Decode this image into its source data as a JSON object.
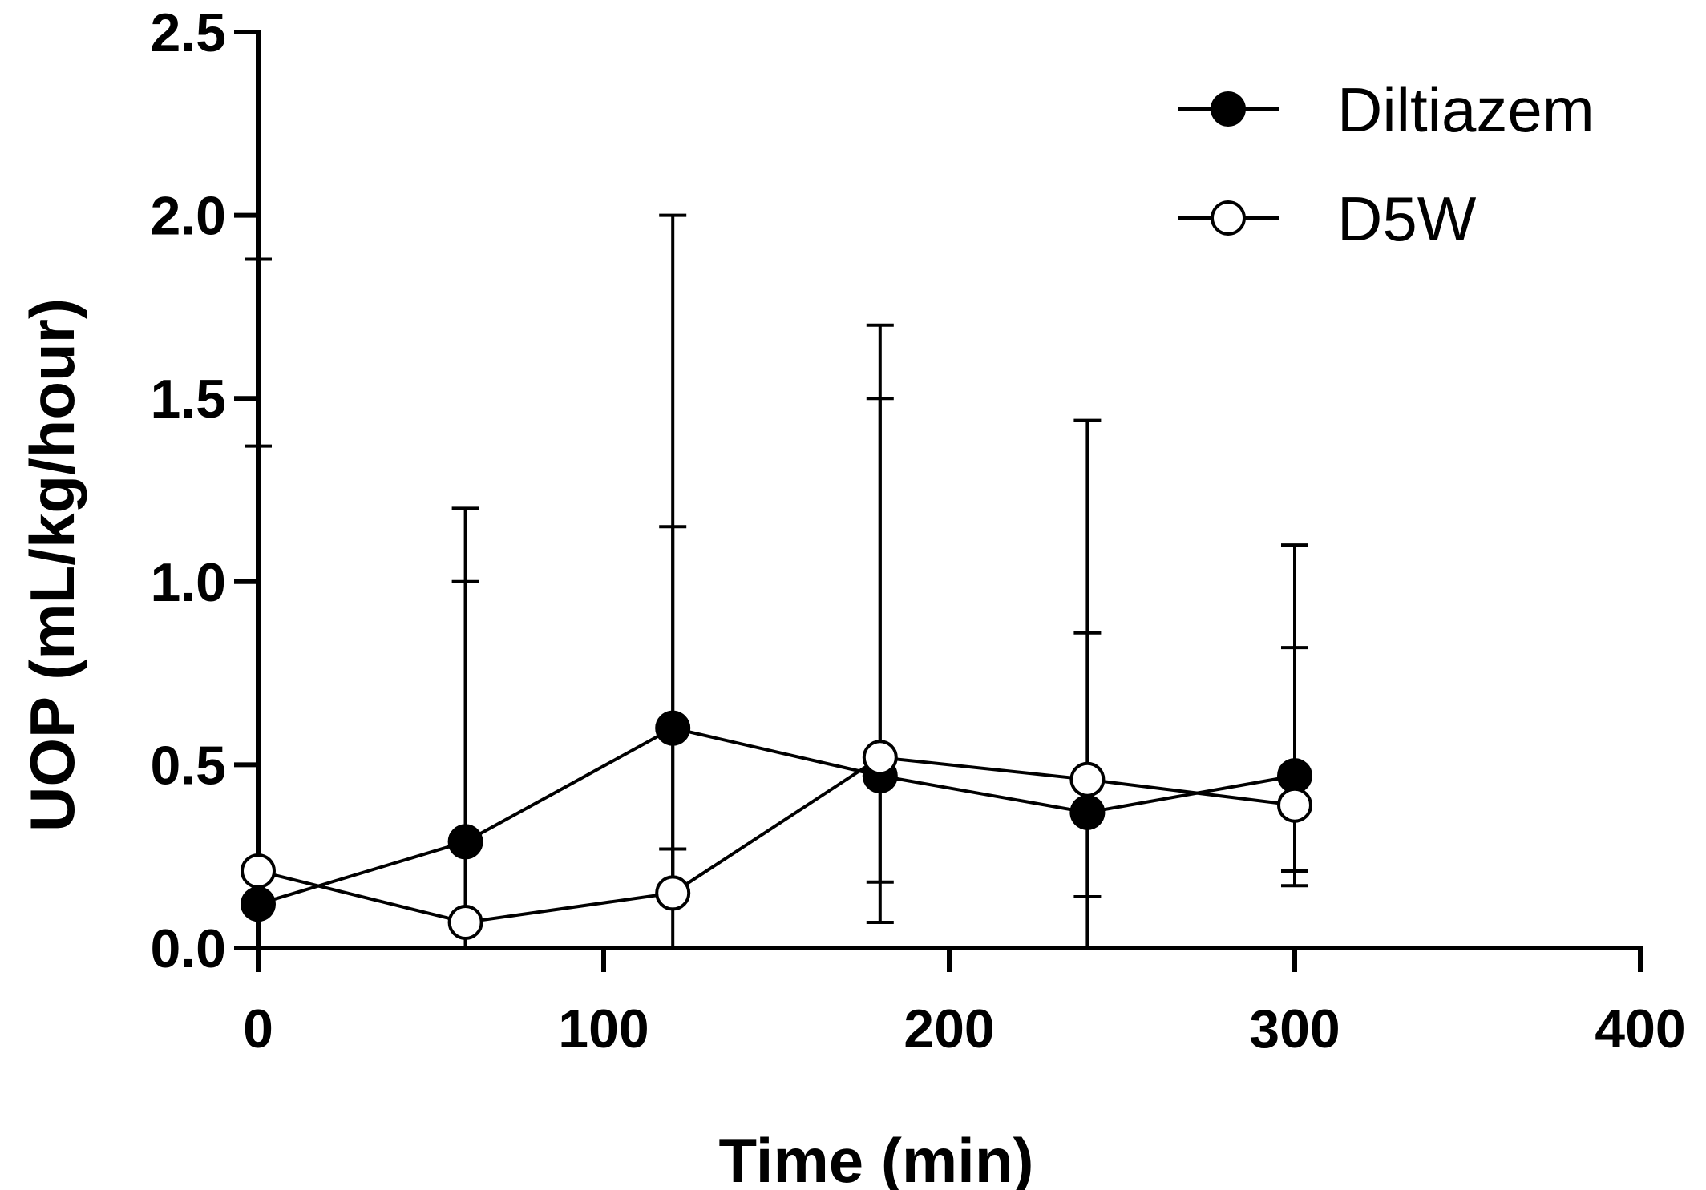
{
  "chart_data": {
    "type": "line",
    "xlabel": "Time (min)",
    "ylabel": "UOP (mL/kg/hour)",
    "xlim": [
      0,
      400
    ],
    "ylim": [
      0,
      2.5
    ],
    "xticks": [
      0,
      100,
      200,
      300,
      400
    ],
    "xtick_labels": [
      "0",
      "100",
      "200",
      "300",
      "400"
    ],
    "yticks": [
      0,
      0.5,
      1.0,
      1.5,
      2.0,
      2.5
    ],
    "ytick_labels": [
      "0.0",
      "0.5",
      "1.0",
      "1.5",
      "2.0",
      "2.5"
    ],
    "grid": false,
    "legend": "top-right",
    "x": [
      0,
      60,
      120,
      180,
      240,
      300
    ],
    "series": [
      {
        "name": "Diltiazem",
        "marker": "filled-circle",
        "values": [
          0.12,
          0.29,
          0.6,
          0.47,
          0.37,
          0.47
        ],
        "error_upper": [
          1.37,
          1.2,
          2.0,
          1.5,
          1.44,
          1.1
        ],
        "error_lower": [
          0.0,
          0.0,
          0.0,
          0.07,
          0.0,
          0.17
        ]
      },
      {
        "name": "D5W",
        "marker": "open-circle",
        "values": [
          0.21,
          0.07,
          0.15,
          0.52,
          0.46,
          0.39
        ],
        "error_upper": [
          1.88,
          1.0,
          1.15,
          1.7,
          0.86,
          0.82
        ],
        "error_lower": [
          0.0,
          0.0,
          0.27,
          0.18,
          0.14,
          0.21
        ]
      }
    ]
  }
}
